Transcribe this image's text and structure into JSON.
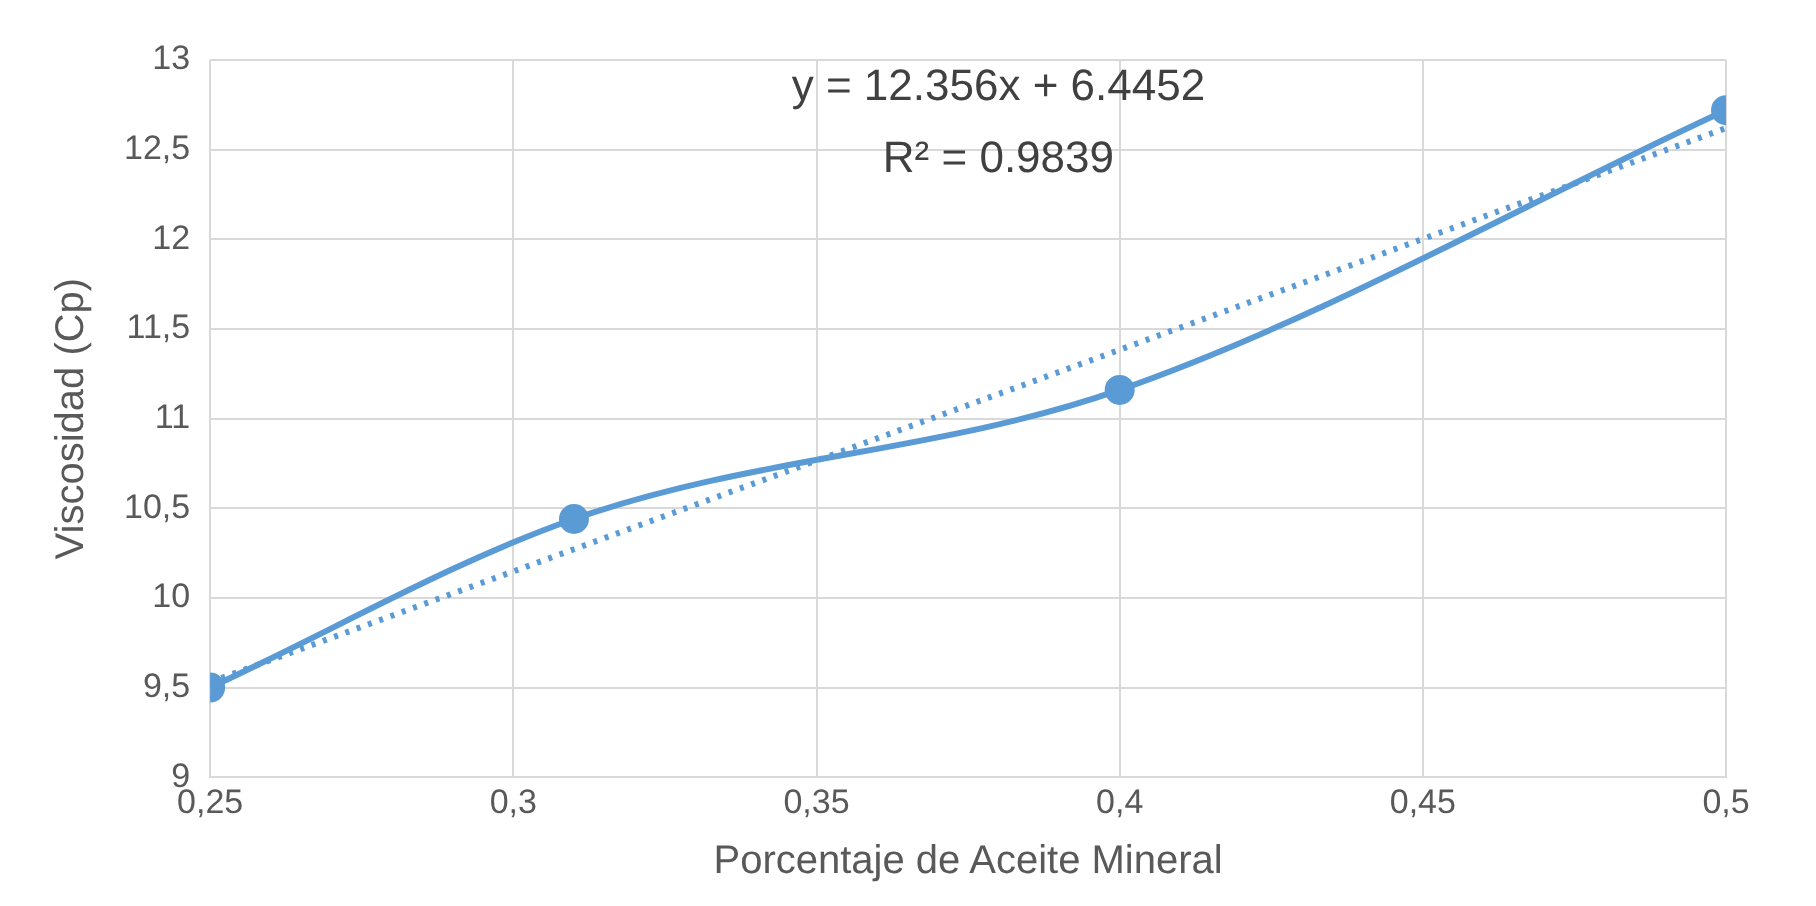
{
  "chart_data": {
    "type": "line",
    "xlabel": "Porcentaje de Aceite Mineral",
    "ylabel": "Viscosidad (Cp)",
    "annotations": [
      "y = 12.356x + 6.4452",
      "R² = 0.9839"
    ],
    "x": [
      0.25,
      0.31,
      0.4,
      0.5
    ],
    "series": [
      {
        "color": "#5b9bd5",
        "values": [
          9.5,
          10.44,
          11.16,
          12.72
        ]
      },
      {
        "type": "line",
        "color": "#5b9bd5",
        "x": [
          0.25,
          0.5
        ],
        "values": [
          9.53,
          12.62
        ],
        "line_style": "dotted",
        "marker": "none"
      }
    ],
    "xlim": [
      0.25,
      0.5
    ],
    "xticks": [
      {
        "value": 0.25,
        "label": "0,25"
      },
      {
        "value": 0.3,
        "label": "0,3"
      },
      {
        "value": 0.35,
        "label": "0,35"
      },
      {
        "value": 0.4,
        "label": "0,4"
      },
      {
        "value": 0.45,
        "label": "0,45"
      },
      {
        "value": 0.5,
        "label": "0,5"
      }
    ],
    "ylim": [
      9,
      13
    ],
    "yticks": [
      9,
      {
        "value": 9.5,
        "label": "9,5"
      },
      10,
      {
        "value": 10.5,
        "label": "10,5"
      },
      11,
      {
        "value": 11.5,
        "label": "11,5"
      },
      12,
      {
        "value": 12.5,
        "label": "12,5"
      },
      13
    ],
    "grid": true,
    "legend": false,
    "marker": "circle"
  }
}
